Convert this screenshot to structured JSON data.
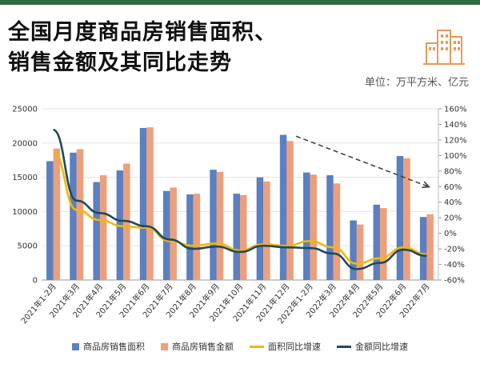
{
  "header": {
    "title_line1": "全国月度商品房销售面积、",
    "title_line2": "销售金额及其同比走势",
    "unit": "单位：万平方米、亿元"
  },
  "colors": {
    "area_bar": "#5b7fbf",
    "amount_bar": "#ec9f7c",
    "area_yoy_line": "#f2b705",
    "amount_yoy_line": "#20485e",
    "grid": "#e3e3e3",
    "trend_arrow": "#444444",
    "logo": "#e89a55",
    "top_bar": "#2f6b3f"
  },
  "logo_icon": "buildings-icon",
  "chart_data": {
    "type": "bar",
    "categories": [
      "2021年1-2月",
      "2021年3月",
      "2021年4月",
      "2021年5月",
      "2021年6月",
      "2021年7月",
      "2021年8月",
      "2021年9月",
      "2021年10月",
      "2021年11月",
      "2021年12月",
      "2022年1-2月",
      "2022年3月",
      "2022年4月",
      "2022年5月",
      "2022年6月",
      "2022年7月"
    ],
    "series": [
      {
        "name": "商品房销售面积",
        "type": "bar",
        "axis": "left",
        "values": [
          17360,
          18600,
          14300,
          16000,
          22200,
          13000,
          12500,
          16100,
          12600,
          15000,
          21200,
          15700,
          15300,
          8700,
          11000,
          18100,
          9200
        ]
      },
      {
        "name": "商品房销售金额",
        "type": "bar",
        "axis": "left",
        "values": [
          19200,
          19100,
          15300,
          17000,
          22300,
          13500,
          12600,
          15800,
          12400,
          14400,
          20300,
          15400,
          14100,
          8100,
          10500,
          17800,
          9600
        ]
      },
      {
        "name": "面积同比增速",
        "type": "line",
        "axis": "right",
        "values": [
          105,
          30,
          17,
          9,
          7,
          -10,
          -16,
          -13,
          -22,
          -14,
          -16,
          -10,
          -18,
          -39,
          -32,
          -18,
          -27
        ]
      },
      {
        "name": "金额同比增速",
        "type": "line",
        "axis": "right",
        "values": [
          133,
          42,
          26,
          16,
          9,
          -8,
          -20,
          -17,
          -24,
          -16,
          -18,
          -19,
          -26,
          -46,
          -38,
          -21,
          -29
        ]
      }
    ],
    "y_left": {
      "min": 0,
      "max": 25000,
      "ticks": [
        0,
        5000,
        10000,
        15000,
        20000,
        25000
      ]
    },
    "y_right": {
      "min": -60,
      "max": 160,
      "ticks": [
        "-60%",
        "-40%",
        "-20%",
        "0%",
        "20%",
        "40%",
        "60%",
        "80%",
        "100%",
        "120%",
        "140%",
        "160%"
      ]
    },
    "grid": true,
    "legend_position": "bottom"
  }
}
